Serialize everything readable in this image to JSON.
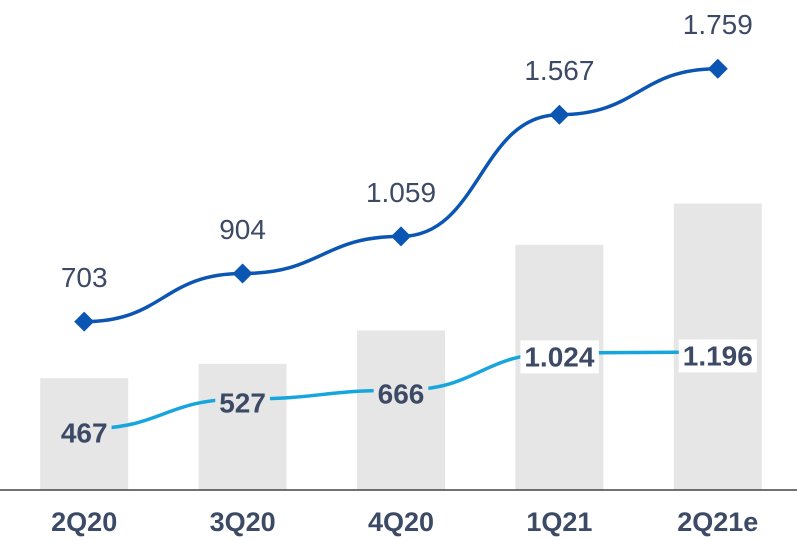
{
  "chart_data": {
    "type": "combo",
    "categories": [
      "2Q20",
      "3Q20",
      "4Q20",
      "1Q21",
      "2Q21e"
    ],
    "ylim": [
      0,
      2000
    ],
    "series": [
      {
        "type": "bar",
        "color": "#e6e6e6",
        "values": [
          467,
          527,
          666,
          1024,
          1196
        ],
        "value_labels": [
          "467",
          "527",
          "666",
          "1.024",
          "1.196"
        ]
      },
      {
        "type": "line",
        "color": "#0b55b3",
        "values": [
          703,
          904,
          1059,
          1567,
          1759
        ],
        "value_labels": [
          "703",
          "904",
          "1.059",
          "1.567",
          "1.759"
        ]
      },
      {
        "type": "line",
        "color": "#16a6dd",
        "values": [
          255,
          380,
          417,
          572,
          576
        ]
      }
    ]
  }
}
